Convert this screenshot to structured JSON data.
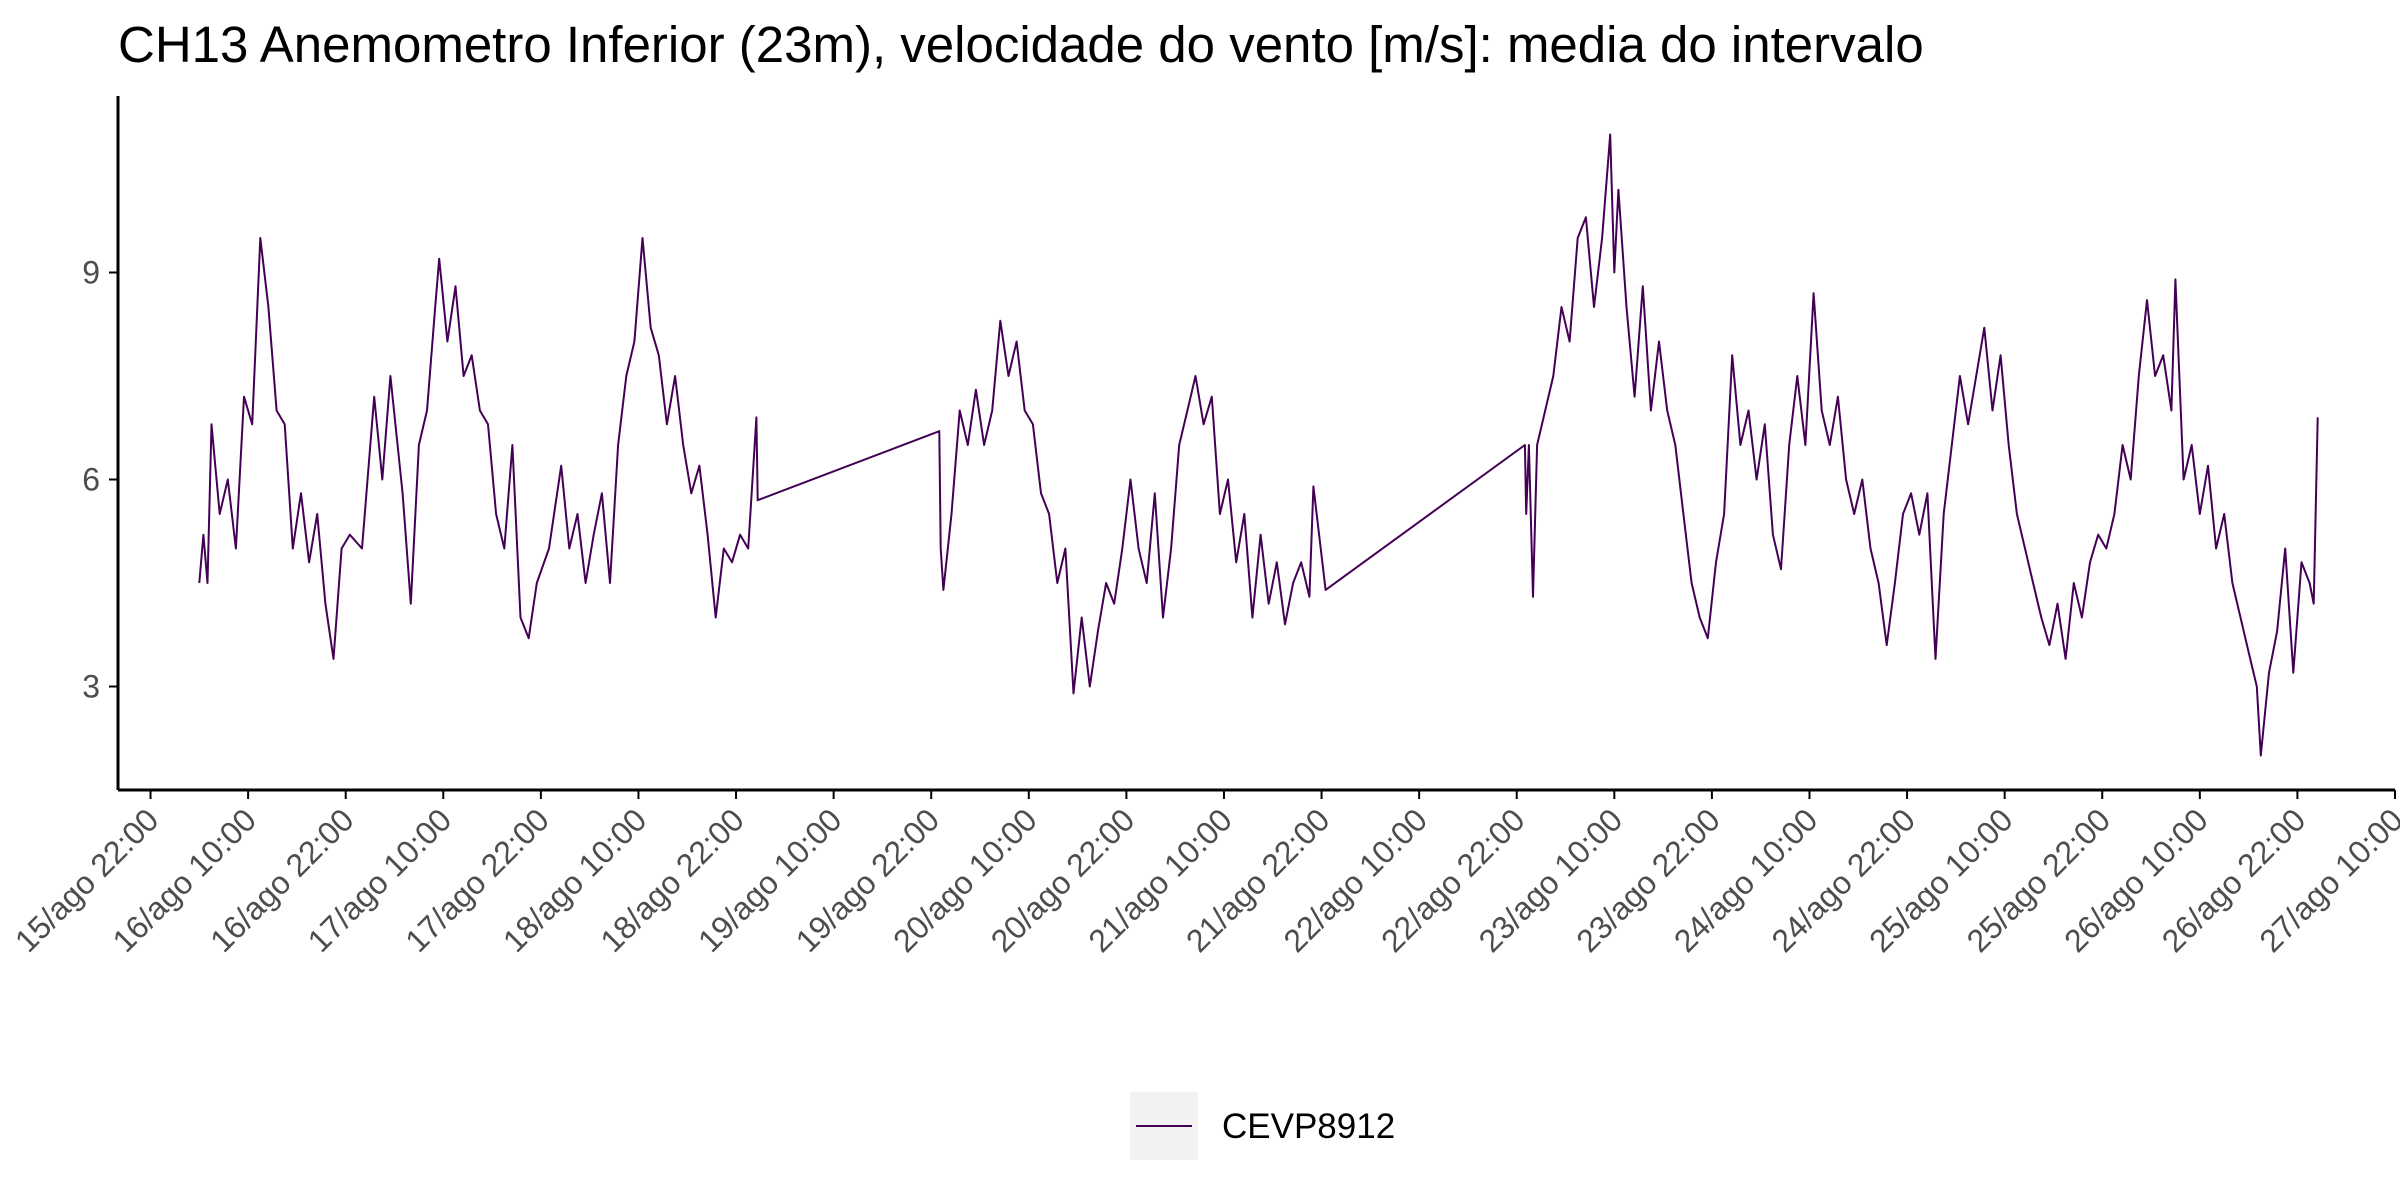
{
  "chart_data": {
    "type": "line",
    "title": "CH13 Anemometro Inferior (23m), velocidade do vento [m/s]: media do intervalo",
    "xlabel": "",
    "ylabel": "",
    "x_axis": {
      "tick_labels": [
        "15/ago 22:00",
        "16/ago 10:00",
        "16/ago 22:00",
        "17/ago 10:00",
        "17/ago 22:00",
        "18/ago 10:00",
        "18/ago 22:00",
        "19/ago 10:00",
        "19/ago 22:00",
        "20/ago 10:00",
        "20/ago 22:00",
        "21/ago 10:00",
        "21/ago 22:00",
        "22/ago 10:00",
        "22/ago 22:00",
        "23/ago 10:00",
        "23/ago 22:00",
        "24/ago 10:00",
        "24/ago 22:00",
        "25/ago 10:00",
        "25/ago 22:00",
        "26/ago 10:00",
        "26/ago 22:00",
        "27/ago 10:00"
      ],
      "range": [
        "15/ago 18:00",
        "27/ago 10:00"
      ]
    },
    "y_axis": {
      "ticks": [
        3,
        6,
        9
      ],
      "range": [
        1.5,
        11.5
      ]
    },
    "grid": false,
    "legend_position": "bottom",
    "series": [
      {
        "name": "CEVP8912",
        "color": "#440154",
        "points": [
          [
            "16/ago 04:00",
            4.5
          ],
          [
            "16/ago 04:30",
            5.2
          ],
          [
            "16/ago 05:00",
            4.5
          ],
          [
            "16/ago 05:30",
            6.8
          ],
          [
            "16/ago 06:30",
            5.5
          ],
          [
            "16/ago 07:30",
            6.0
          ],
          [
            "16/ago 08:30",
            5.0
          ],
          [
            "16/ago 09:30",
            7.2
          ],
          [
            "16/ago 10:30",
            6.8
          ],
          [
            "16/ago 11:30",
            9.5
          ],
          [
            "16/ago 12:30",
            8.5
          ],
          [
            "16/ago 13:30",
            7.0
          ],
          [
            "16/ago 14:30",
            6.8
          ],
          [
            "16/ago 15:30",
            5.0
          ],
          [
            "16/ago 16:30",
            5.8
          ],
          [
            "16/ago 17:30",
            4.8
          ],
          [
            "16/ago 18:30",
            5.5
          ],
          [
            "16/ago 19:30",
            4.2
          ],
          [
            "16/ago 20:30",
            3.4
          ],
          [
            "16/ago 21:30",
            5.0
          ],
          [
            "16/ago 22:30",
            5.2
          ],
          [
            "17/ago 00:00",
            5.0
          ],
          [
            "17/ago 01:30",
            7.2
          ],
          [
            "17/ago 02:30",
            6.0
          ],
          [
            "17/ago 03:30",
            7.5
          ],
          [
            "17/ago 05:00",
            5.8
          ],
          [
            "17/ago 06:00",
            4.2
          ],
          [
            "17/ago 07:00",
            6.5
          ],
          [
            "17/ago 08:00",
            7.0
          ],
          [
            "17/ago 09:00",
            8.5
          ],
          [
            "17/ago 09:30",
            9.2
          ],
          [
            "17/ago 10:30",
            8.0
          ],
          [
            "17/ago 11:30",
            8.8
          ],
          [
            "17/ago 12:30",
            7.5
          ],
          [
            "17/ago 13:30",
            7.8
          ],
          [
            "17/ago 14:30",
            7.0
          ],
          [
            "17/ago 15:30",
            6.8
          ],
          [
            "17/ago 16:30",
            5.5
          ],
          [
            "17/ago 17:30",
            5.0
          ],
          [
            "17/ago 18:30",
            6.5
          ],
          [
            "17/ago 19:30",
            4.0
          ],
          [
            "17/ago 20:30",
            3.7
          ],
          [
            "17/ago 21:30",
            4.5
          ],
          [
            "17/ago 23:00",
            5.0
          ],
          [
            "18/ago 00:30",
            6.2
          ],
          [
            "18/ago 01:30",
            5.0
          ],
          [
            "18/ago 02:30",
            5.5
          ],
          [
            "18/ago 03:30",
            4.5
          ],
          [
            "18/ago 04:30",
            5.2
          ],
          [
            "18/ago 05:30",
            5.8
          ],
          [
            "18/ago 06:30",
            4.5
          ],
          [
            "18/ago 07:30",
            6.5
          ],
          [
            "18/ago 08:30",
            7.5
          ],
          [
            "18/ago 09:30",
            8.0
          ],
          [
            "18/ago 10:30",
            9.5
          ],
          [
            "18/ago 11:30",
            8.2
          ],
          [
            "18/ago 12:30",
            7.8
          ],
          [
            "18/ago 13:30",
            6.8
          ],
          [
            "18/ago 14:30",
            7.5
          ],
          [
            "18/ago 15:30",
            6.5
          ],
          [
            "18/ago 16:30",
            5.8
          ],
          [
            "18/ago 17:30",
            6.2
          ],
          [
            "18/ago 18:30",
            5.2
          ],
          [
            "18/ago 19:30",
            4.0
          ],
          [
            "18/ago 20:30",
            5.0
          ],
          [
            "18/ago 21:30",
            4.8
          ],
          [
            "18/ago 22:30",
            5.2
          ],
          [
            "18/ago 23:30",
            5.0
          ],
          [
            "19/ago 00:30",
            6.9
          ],
          [
            "19/ago 00:40",
            5.7
          ],
          [
            "19/ago 23:00",
            6.7
          ],
          [
            "19/ago 23:10",
            5.0
          ],
          [
            "19/ago 23:30",
            4.4
          ],
          [
            "20/ago 00:30",
            5.5
          ],
          [
            "20/ago 01:30",
            7.0
          ],
          [
            "20/ago 02:30",
            6.5
          ],
          [
            "20/ago 03:30",
            7.3
          ],
          [
            "20/ago 04:30",
            6.5
          ],
          [
            "20/ago 05:30",
            7.0
          ],
          [
            "20/ago 06:30",
            8.3
          ],
          [
            "20/ago 07:30",
            7.5
          ],
          [
            "20/ago 08:30",
            8.0
          ],
          [
            "20/ago 09:30",
            7.0
          ],
          [
            "20/ago 10:30",
            6.8
          ],
          [
            "20/ago 11:30",
            5.8
          ],
          [
            "20/ago 12:30",
            5.5
          ],
          [
            "20/ago 13:30",
            4.5
          ],
          [
            "20/ago 14:30",
            5.0
          ],
          [
            "20/ago 15:30",
            2.9
          ],
          [
            "20/ago 16:30",
            4.0
          ],
          [
            "20/ago 17:30",
            3.0
          ],
          [
            "20/ago 18:30",
            3.8
          ],
          [
            "20/ago 19:30",
            4.5
          ],
          [
            "20/ago 20:30",
            4.2
          ],
          [
            "20/ago 21:30",
            5.0
          ],
          [
            "20/ago 22:30",
            6.0
          ],
          [
            "20/ago 23:30",
            5.0
          ],
          [
            "21/ago 00:30",
            4.5
          ],
          [
            "21/ago 01:30",
            5.8
          ],
          [
            "21/ago 02:30",
            4.0
          ],
          [
            "21/ago 03:30",
            5.0
          ],
          [
            "21/ago 04:30",
            6.5
          ],
          [
            "21/ago 05:30",
            7.0
          ],
          [
            "21/ago 06:30",
            7.5
          ],
          [
            "21/ago 07:30",
            6.8
          ],
          [
            "21/ago 08:30",
            7.2
          ],
          [
            "21/ago 09:30",
            5.5
          ],
          [
            "21/ago 10:30",
            6.0
          ],
          [
            "21/ago 11:30",
            4.8
          ],
          [
            "21/ago 12:30",
            5.5
          ],
          [
            "21/ago 13:30",
            4.0
          ],
          [
            "21/ago 14:30",
            5.2
          ],
          [
            "21/ago 15:30",
            4.2
          ],
          [
            "21/ago 16:30",
            4.8
          ],
          [
            "21/ago 17:30",
            3.9
          ],
          [
            "21/ago 18:30",
            4.5
          ],
          [
            "21/ago 19:30",
            4.8
          ],
          [
            "21/ago 20:30",
            4.3
          ],
          [
            "21/ago 21:00",
            5.9
          ],
          [
            "21/ago 22:30",
            4.4
          ],
          [
            "22/ago 23:00",
            6.5
          ],
          [
            "22/ago 23:10",
            5.5
          ],
          [
            "22/ago 23:30",
            6.5
          ],
          [
            "23/ago 00:00",
            4.3
          ],
          [
            "23/ago 00:30",
            6.5
          ],
          [
            "23/ago 01:30",
            7.0
          ],
          [
            "23/ago 02:30",
            7.5
          ],
          [
            "23/ago 03:30",
            8.5
          ],
          [
            "23/ago 04:30",
            8.0
          ],
          [
            "23/ago 05:30",
            9.5
          ],
          [
            "23/ago 06:30",
            9.8
          ],
          [
            "23/ago 07:30",
            8.5
          ],
          [
            "23/ago 08:30",
            9.5
          ],
          [
            "23/ago 09:30",
            11.0
          ],
          [
            "23/ago 10:00",
            9.0
          ],
          [
            "23/ago 10:30",
            10.2
          ],
          [
            "23/ago 11:30",
            8.5
          ],
          [
            "23/ago 12:30",
            7.2
          ],
          [
            "23/ago 13:30",
            8.8
          ],
          [
            "23/ago 14:30",
            7.0
          ],
          [
            "23/ago 15:30",
            8.0
          ],
          [
            "23/ago 16:30",
            7.0
          ],
          [
            "23/ago 17:30",
            6.5
          ],
          [
            "23/ago 18:30",
            5.5
          ],
          [
            "23/ago 19:30",
            4.5
          ],
          [
            "23/ago 20:30",
            4.0
          ],
          [
            "23/ago 21:30",
            3.7
          ],
          [
            "23/ago 22:30",
            4.8
          ],
          [
            "23/ago 23:30",
            5.5
          ],
          [
            "24/ago 00:30",
            7.8
          ],
          [
            "24/ago 01:30",
            6.5
          ],
          [
            "24/ago 02:30",
            7.0
          ],
          [
            "24/ago 03:30",
            6.0
          ],
          [
            "24/ago 04:30",
            6.8
          ],
          [
            "24/ago 05:30",
            5.2
          ],
          [
            "24/ago 06:30",
            4.7
          ],
          [
            "24/ago 07:30",
            6.5
          ],
          [
            "24/ago 08:30",
            7.5
          ],
          [
            "24/ago 09:30",
            6.5
          ],
          [
            "24/ago 10:30",
            8.7
          ],
          [
            "24/ago 11:30",
            7.0
          ],
          [
            "24/ago 12:30",
            6.5
          ],
          [
            "24/ago 13:30",
            7.2
          ],
          [
            "24/ago 14:30",
            6.0
          ],
          [
            "24/ago 15:30",
            5.5
          ],
          [
            "24/ago 16:30",
            6.0
          ],
          [
            "24/ago 17:30",
            5.0
          ],
          [
            "24/ago 18:30",
            4.5
          ],
          [
            "24/ago 19:30",
            3.6
          ],
          [
            "24/ago 20:30",
            4.5
          ],
          [
            "24/ago 21:30",
            5.5
          ],
          [
            "24/ago 22:30",
            5.8
          ],
          [
            "24/ago 23:30",
            5.2
          ],
          [
            "25/ago 00:30",
            5.8
          ],
          [
            "25/ago 01:30",
            3.4
          ],
          [
            "25/ago 02:30",
            5.5
          ],
          [
            "25/ago 03:30",
            6.5
          ],
          [
            "25/ago 04:30",
            7.5
          ],
          [
            "25/ago 05:30",
            6.8
          ],
          [
            "25/ago 06:30",
            7.5
          ],
          [
            "25/ago 07:30",
            8.2
          ],
          [
            "25/ago 08:30",
            7.0
          ],
          [
            "25/ago 09:30",
            7.8
          ],
          [
            "25/ago 10:30",
            6.5
          ],
          [
            "25/ago 11:30",
            5.5
          ],
          [
            "25/ago 12:30",
            5.0
          ],
          [
            "25/ago 13:30",
            4.5
          ],
          [
            "25/ago 14:30",
            4.0
          ],
          [
            "25/ago 15:30",
            3.6
          ],
          [
            "25/ago 16:30",
            4.2
          ],
          [
            "25/ago 17:30",
            3.4
          ],
          [
            "25/ago 18:30",
            4.5
          ],
          [
            "25/ago 19:30",
            4.0
          ],
          [
            "25/ago 20:30",
            4.8
          ],
          [
            "25/ago 21:30",
            5.2
          ],
          [
            "25/ago 22:30",
            5.0
          ],
          [
            "25/ago 23:30",
            5.5
          ],
          [
            "26/ago 00:30",
            6.5
          ],
          [
            "26/ago 01:30",
            6.0
          ],
          [
            "26/ago 02:30",
            7.5
          ],
          [
            "26/ago 03:30",
            8.6
          ],
          [
            "26/ago 04:30",
            7.5
          ],
          [
            "26/ago 05:30",
            7.8
          ],
          [
            "26/ago 06:30",
            7.0
          ],
          [
            "26/ago 07:00",
            8.9
          ],
          [
            "26/ago 08:00",
            6.0
          ],
          [
            "26/ago 09:00",
            6.5
          ],
          [
            "26/ago 10:00",
            5.5
          ],
          [
            "26/ago 11:00",
            6.2
          ],
          [
            "26/ago 12:00",
            5.0
          ],
          [
            "26/ago 13:00",
            5.5
          ],
          [
            "26/ago 14:00",
            4.5
          ],
          [
            "26/ago 15:00",
            4.0
          ],
          [
            "26/ago 16:00",
            3.5
          ],
          [
            "26/ago 17:00",
            3.0
          ],
          [
            "26/ago 17:30",
            2.0
          ],
          [
            "26/ago 18:30",
            3.2
          ],
          [
            "26/ago 19:30",
            3.8
          ],
          [
            "26/ago 20:30",
            5.0
          ],
          [
            "26/ago 21:30",
            3.2
          ],
          [
            "26/ago 22:30",
            4.8
          ],
          [
            "26/ago 23:30",
            4.5
          ],
          [
            "27/ago 00:00",
            4.2
          ],
          [
            "27/ago 00:30",
            6.9
          ]
        ]
      }
    ],
    "legend": [
      {
        "label": "CEVP8912",
        "color": "#440154"
      }
    ]
  },
  "colors": {
    "series_line": "#440154",
    "axis_line": "#000000",
    "tick_text": "#4d4d4d",
    "legend_key_bg": "#f2f2f2"
  }
}
